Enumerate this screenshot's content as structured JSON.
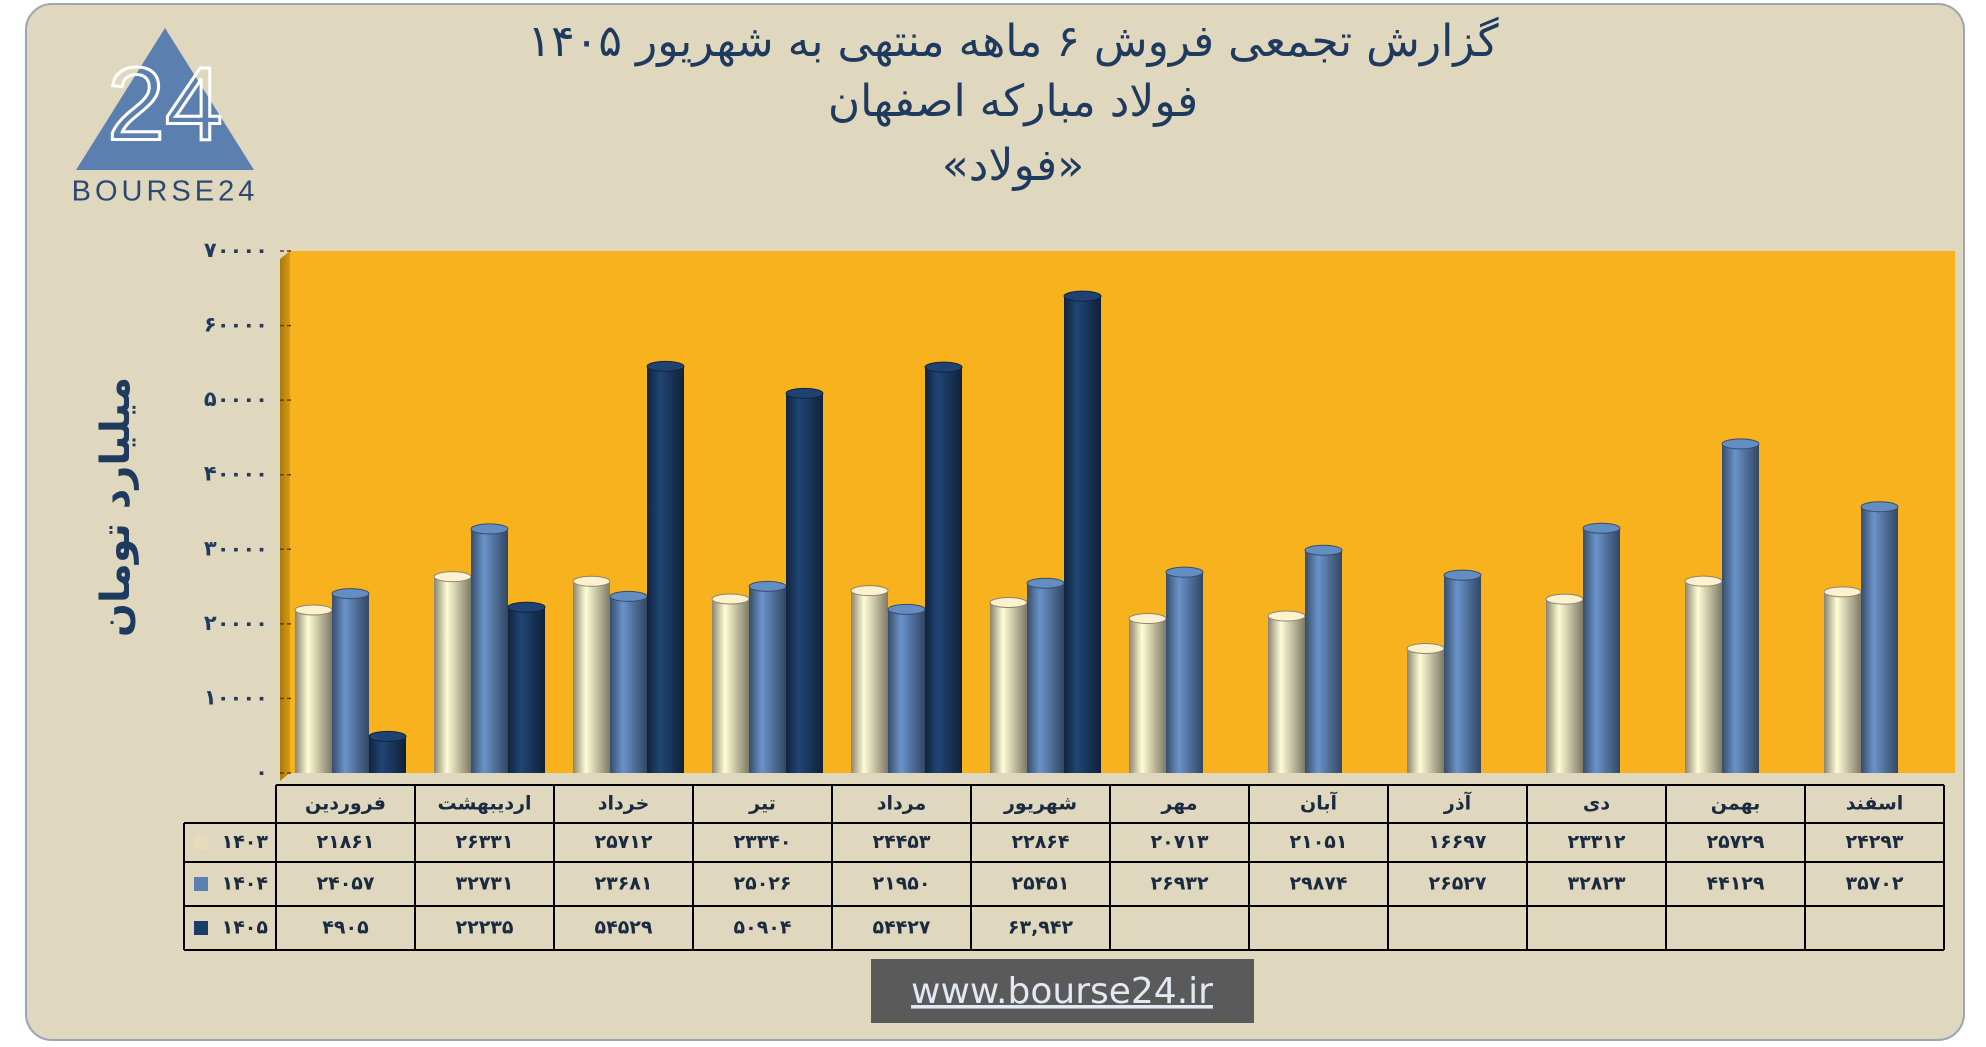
{
  "chart_data": {
    "type": "bar",
    "title": "گزارش تجمعی فروش ۶ ماهه منتهی به شهریور ۱۴۰۵",
    "subtitle": "فولاد مبارکه اصفهان",
    "subtitle2": "«فولاد»",
    "y_label": "میلیارد تومان",
    "categories": [
      "فروردین",
      "اردیبهشت",
      "خرداد",
      "تیر",
      "مرداد",
      "شهریور",
      "مهر",
      "آبان",
      "آذر",
      "دی",
      "بهمن",
      "اسفند"
    ],
    "series": [
      {
        "name": "۱۴۰۳",
        "color": "#e6dcba",
        "values": [
          21861,
          26331,
          25712,
          23340,
          24453,
          22864,
          20713,
          21051,
          16697,
          23312,
          25729,
          24293
        ],
        "value_labels": [
          "۲۱۸۶۱",
          "۲۶۳۳۱",
          "۲۵۷۱۲",
          "۲۳۳۴۰",
          "۲۴۴۵۳",
          "۲۲۸۶۴",
          "۲۰۷۱۳",
          "۲۱۰۵۱",
          "۱۶۶۹۷",
          "۲۳۳۱۲",
          "۲۵۷۲۹",
          "۲۴۲۹۳"
        ]
      },
      {
        "name": "۱۴۰۴",
        "color": "#5b80b0",
        "values": [
          24057,
          32731,
          23681,
          25026,
          21950,
          25451,
          26932,
          29874,
          26527,
          32823,
          44129,
          35702
        ],
        "value_labels": [
          "۲۴۰۵۷",
          "۳۲۷۳۱",
          "۲۳۶۸۱",
          "۲۵۰۲۶",
          "۲۱۹۵۰",
          "۲۵۴۵۱",
          "۲۶۹۳۲",
          "۲۹۸۷۴",
          "۲۶۵۲۷",
          "۳۲۸۲۳",
          "۴۴۱۲۹",
          "۳۵۷۰۲"
        ]
      },
      {
        "name": "۱۴۰۵",
        "color": "#1c3c66",
        "values": [
          4905,
          22235,
          54529,
          50904,
          54427,
          63942,
          null,
          null,
          null,
          null,
          null,
          null
        ],
        "value_labels": [
          "۴۹۰۵",
          "۲۲۲۳۵",
          "۵۴۵۲۹",
          "۵۰۹۰۴",
          "۵۴۴۲۷",
          "۶۳,۹۴۲",
          null,
          null,
          null,
          null,
          null,
          null
        ]
      }
    ],
    "ylim": [
      0,
      70000
    ],
    "yticks": [
      {
        "value": 0,
        "label": "۰"
      },
      {
        "value": 10000,
        "label": "۱۰۰۰۰"
      },
      {
        "value": 20000,
        "label": "۲۰۰۰۰"
      },
      {
        "value": 30000,
        "label": "۳۰۰۰۰"
      },
      {
        "value": 40000,
        "label": "۴۰۰۰۰"
      },
      {
        "value": 50000,
        "label": "۵۰۰۰۰"
      },
      {
        "value": 60000,
        "label": "۶۰۰۰۰"
      },
      {
        "value": 70000,
        "label": "۷۰۰۰۰"
      }
    ],
    "plot_color": "#f7b21e"
  },
  "logo": {
    "mark": "24",
    "text": "BOURSE24"
  },
  "footer": "www.bourse24.ir"
}
